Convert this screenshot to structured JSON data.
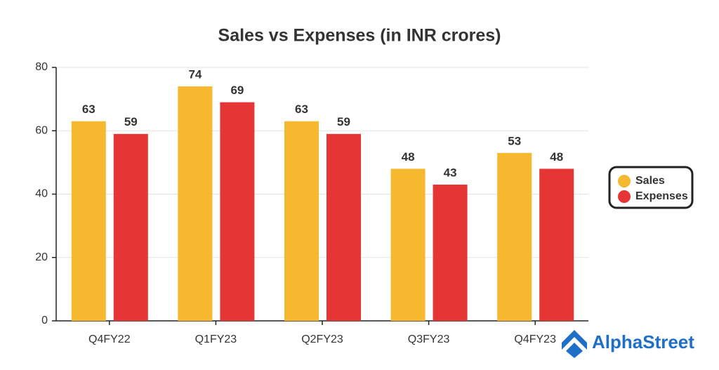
{
  "chart_data": {
    "type": "bar",
    "title": "Sales vs Expenses (in INR crores)",
    "categories": [
      "Q4FY22",
      "Q1FY23",
      "Q2FY23",
      "Q3FY23",
      "Q4FY23"
    ],
    "series": [
      {
        "name": "Sales",
        "color": "#f5b82e",
        "values": [
          63,
          74,
          63,
          48,
          53
        ]
      },
      {
        "name": "Expenses",
        "color": "#e53535",
        "values": [
          59,
          69,
          59,
          43,
          48
        ]
      }
    ],
    "ylim": [
      0,
      80
    ],
    "yticks": [
      0,
      20,
      40,
      60,
      80
    ],
    "grid": true,
    "legend": "right"
  },
  "brand": "AlphaStreet"
}
